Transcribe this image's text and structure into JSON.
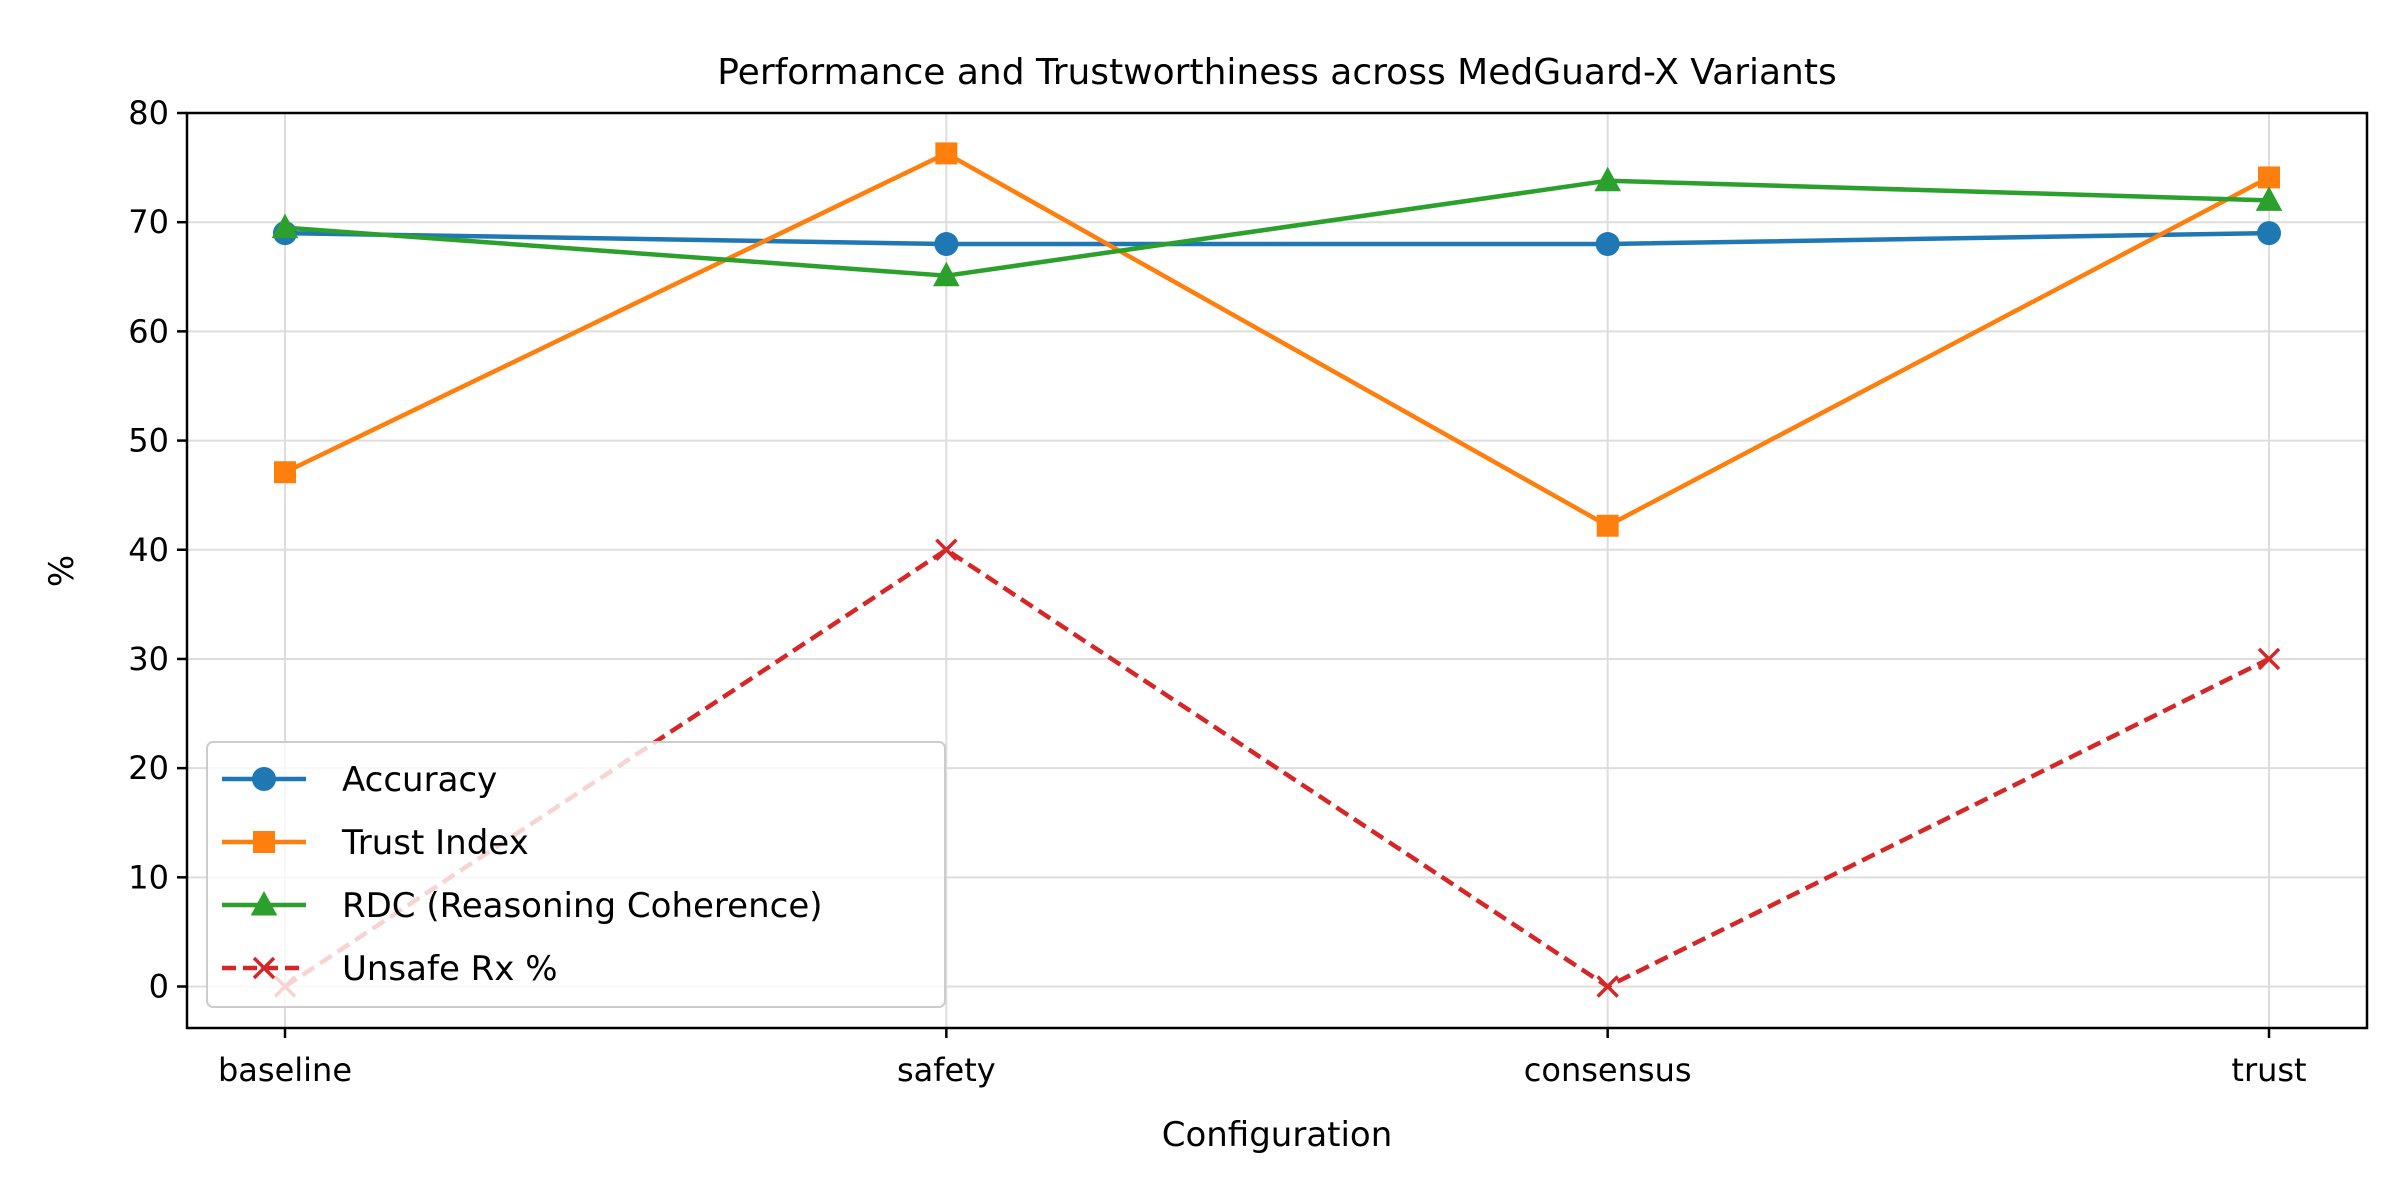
{
  "chart_data": {
    "type": "line",
    "title": "Performance and Trustworthiness across MedGuard-X Variants",
    "xlabel": "Configuration",
    "ylabel": "%",
    "categories": [
      "baseline",
      "safety",
      "consensus",
      "trust"
    ],
    "ylim": [
      -3.8,
      80
    ],
    "yticks": [
      0,
      10,
      20,
      30,
      40,
      50,
      60,
      70,
      80
    ],
    "grid": true,
    "legend_position": "lower-left",
    "series": [
      {
        "name": "Accuracy",
        "values": [
          69,
          68,
          68,
          69
        ],
        "color": "#1f77b4",
        "marker": "circle",
        "line_style": "solid"
      },
      {
        "name": "Trust Index",
        "values": [
          47.1,
          76.3,
          42.2,
          74.1
        ],
        "color": "#ff7f0e",
        "marker": "square",
        "line_style": "solid"
      },
      {
        "name": "RDC (Reasoning Coherence)",
        "values": [
          69.5,
          65.1,
          73.8,
          72
        ],
        "color": "#2ca02c",
        "marker": "triangle",
        "line_style": "solid"
      },
      {
        "name": "Unsafe Rx %",
        "values": [
          0,
          40,
          0,
          30
        ],
        "color": "#d62728",
        "marker": "x",
        "line_style": "dashed"
      }
    ]
  }
}
